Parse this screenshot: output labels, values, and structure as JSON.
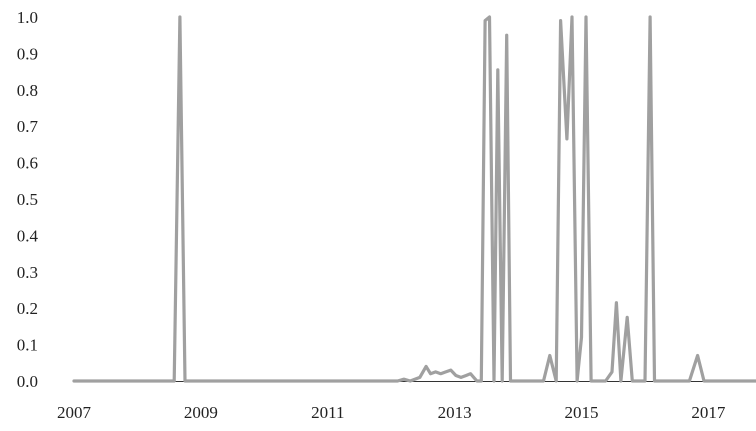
{
  "chart_data": {
    "type": "line",
    "title": "",
    "xlabel": "",
    "ylabel": "",
    "xlim": [
      2007.0,
      2017.75
    ],
    "ylim": [
      0.0,
      1.0
    ],
    "grid": false,
    "legend": "none",
    "x_ticks": [
      "2007",
      "2009",
      "2011",
      "2013",
      "2015",
      "2017"
    ],
    "y_ticks": [
      "0.0",
      "0.1",
      "0.2",
      "0.3",
      "0.4",
      "0.5",
      "0.6",
      "0.7",
      "0.8",
      "0.9",
      "1.0"
    ],
    "line_color": "#a0a0a0",
    "axis_color": "#333333",
    "series": [
      {
        "x": [
          2007.0,
          2008.58,
          2008.67,
          2008.75,
          2012.1,
          2012.2,
          2012.3,
          2012.45,
          2012.55,
          2012.62,
          2012.7,
          2012.78,
          2012.86,
          2012.94,
          2013.02,
          2013.1,
          2013.18,
          2013.25,
          2013.35,
          2013.42,
          2013.48,
          2013.55,
          2013.62,
          2013.68,
          2013.75,
          2013.82,
          2013.88,
          2013.95,
          2014.02,
          2014.1,
          2014.4,
          2014.5,
          2014.6,
          2014.67,
          2014.77,
          2014.85,
          2014.93,
          2015.0,
          2015.07,
          2015.15,
          2015.25,
          2015.38,
          2015.48,
          2015.55,
          2015.62,
          2015.72,
          2015.8,
          2015.88,
          2016.0,
          2016.08,
          2016.15,
          2016.25,
          2016.7,
          2016.83,
          2016.93,
          2017.6,
          2017.75
        ],
        "y": [
          0.0,
          0.0,
          1.0,
          0.0,
          0.0,
          0.005,
          0.0,
          0.01,
          0.04,
          0.02,
          0.025,
          0.02,
          0.025,
          0.03,
          0.015,
          0.01,
          0.015,
          0.02,
          0.0,
          0.0,
          0.99,
          1.0,
          0.0,
          0.855,
          0.0,
          0.95,
          0.0,
          0.0,
          0.0,
          0.0,
          0.0,
          0.07,
          0.0,
          0.99,
          0.665,
          1.0,
          0.0,
          0.12,
          1.0,
          0.0,
          0.0,
          0.0,
          0.025,
          0.215,
          0.0,
          0.175,
          0.0,
          0.0,
          0.0,
          1.0,
          0.0,
          0.0,
          0.0,
          0.07,
          0.0,
          0.0,
          0.0
        ]
      }
    ]
  }
}
